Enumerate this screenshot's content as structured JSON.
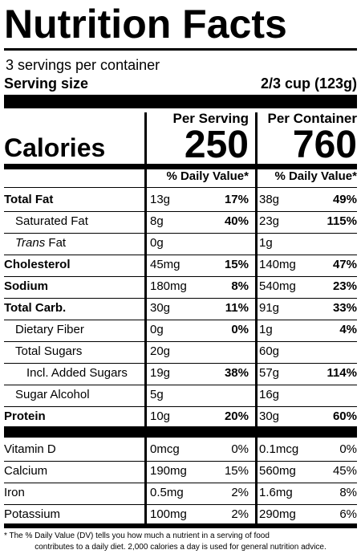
{
  "label": {
    "title": "Nutrition Facts",
    "servings_per_container": "3 servings per container",
    "serving_size_label": "Serving size",
    "serving_size_value": "2/3 cup (123g)",
    "per_serving_header": "Per Serving",
    "per_container_header": "Per Container",
    "calories_label": "Calories",
    "calories_per_serving": "250",
    "calories_per_container": "760",
    "dv_header_serving": "% Daily Value*",
    "dv_header_container": "% Daily Value*"
  },
  "nutrients": [
    {
      "label": "Total Fat",
      "bold": true,
      "serving_amount": "13g",
      "serving_dv": "17%",
      "container_amount": "38g",
      "container_dv": "49%"
    },
    {
      "label": "Saturated Fat",
      "bold": false,
      "serving_amount": "8g",
      "serving_dv": "40%",
      "container_amount": "23g",
      "container_dv": "115%"
    },
    {
      "label_italic": "Trans",
      "label": " Fat",
      "bold": false,
      "serving_amount": "0g",
      "serving_dv": "",
      "container_amount": "1g",
      "container_dv": ""
    },
    {
      "label": "Cholesterol",
      "bold": true,
      "serving_amount": "45mg",
      "serving_dv": "15%",
      "container_amount": "140mg",
      "container_dv": "47%"
    },
    {
      "label": "Sodium",
      "bold": true,
      "serving_amount": "180mg",
      "serving_dv": "8%",
      "container_amount": "540mg",
      "container_dv": "23%"
    },
    {
      "label": "Total Carb.",
      "bold": true,
      "serving_amount": "30g",
      "serving_dv": "11%",
      "container_amount": "91g",
      "container_dv": "33%"
    },
    {
      "label": "Dietary Fiber",
      "bold": false,
      "serving_amount": "0g",
      "serving_dv": "0%",
      "container_amount": "1g",
      "container_dv": "4%"
    },
    {
      "label": "Total Sugars",
      "bold": false,
      "serving_amount": "20g",
      "serving_dv": "",
      "container_amount": "60g",
      "container_dv": ""
    },
    {
      "label": "Incl. Added Sugars",
      "bold": false,
      "serving_amount": "19g",
      "serving_dv": "38%",
      "container_amount": "57g",
      "container_dv": "114%"
    },
    {
      "label": "Sugar Alcohol",
      "bold": false,
      "serving_amount": "5g",
      "serving_dv": "",
      "container_amount": "16g",
      "container_dv": ""
    },
    {
      "label": "Protein",
      "bold": true,
      "serving_amount": "10g",
      "serving_dv": "20%",
      "container_amount": "30g",
      "container_dv": "60%"
    }
  ],
  "vitamins": [
    {
      "label": "Vitamin D",
      "serving_amount": "0mcg",
      "serving_dv": "0%",
      "container_amount": "0.1mcg",
      "container_dv": "0%"
    },
    {
      "label": "Calcium",
      "serving_amount": "190mg",
      "serving_dv": "15%",
      "container_amount": "560mg",
      "container_dv": "45%"
    },
    {
      "label": "Iron",
      "serving_amount": "0.5mg",
      "serving_dv": "2%",
      "container_amount": "1.6mg",
      "container_dv": "8%"
    },
    {
      "label": "Potassium",
      "serving_amount": "100mg",
      "serving_dv": "2%",
      "container_amount": "290mg",
      "container_dv": "6%"
    }
  ],
  "footnote": {
    "line1": "* The % Daily Value (DV) tells you how much a nutrient in a serving of food",
    "line2": "contributes to a daily diet. 2,000 calories a day is used for general nutrition advice."
  }
}
